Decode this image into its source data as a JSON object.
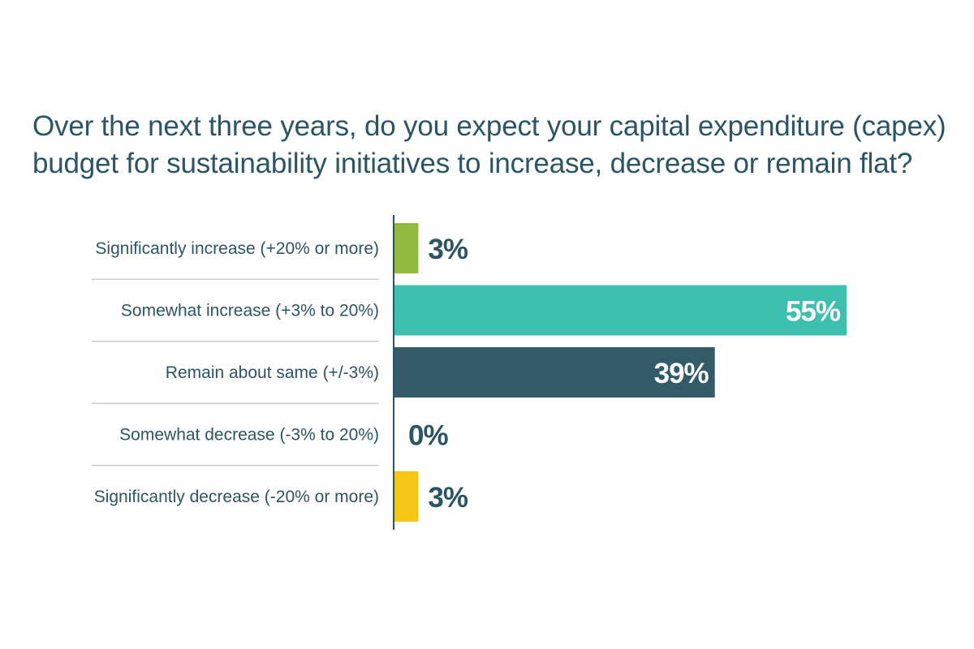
{
  "chart_data": {
    "type": "bar",
    "orientation": "horizontal",
    "title_lines": [
      "Over the next three years, do you expect your capital expenditure (capex)",
      "budget for sustainability initiatives to increase, decrease or remain flat?"
    ],
    "categories": [
      "Significantly increase (+20% or more)",
      "Somewhat increase (+3% to 20%)",
      "Remain about same (+/-3%)",
      "Somewhat decrease (-3% to 20%)",
      "Significantly decrease (-20% or more)"
    ],
    "values": [
      3,
      55,
      39,
      0,
      3
    ],
    "value_labels": [
      "3%",
      "55%",
      "39%",
      "0%",
      "3%"
    ],
    "colors": [
      "#8fbc3f",
      "#3dbfb0",
      "#325a69",
      "#325a69",
      "#f5c518"
    ],
    "unit": "%",
    "xlim": [
      0,
      55
    ],
    "grid": false,
    "legend": "none"
  },
  "colors": {
    "text": "#2b5566",
    "axis": "#2b5566",
    "separator": "#cccccc",
    "inside_label": "#ffffff"
  }
}
